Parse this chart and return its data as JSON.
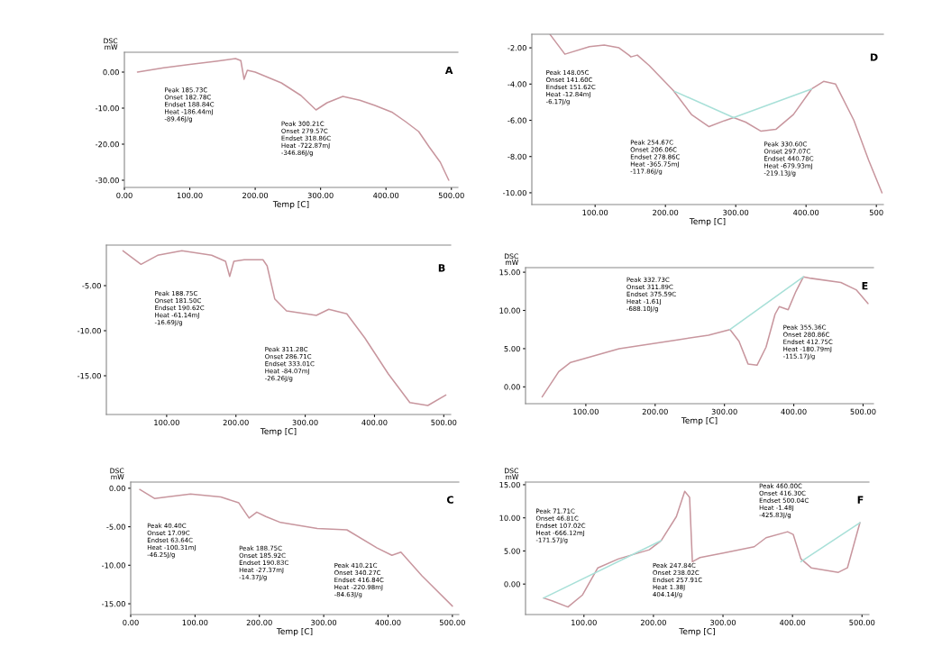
{
  "chart_data": [
    {
      "type": "line",
      "title": "A",
      "xlabel": "Temp [C]",
      "ylabel": "DSC\nmW",
      "xlim": [
        0,
        510
      ],
      "ylim": [
        -32,
        5.5
      ],
      "xticks": [
        {
          "value": 0,
          "label": "0.00"
        },
        {
          "value": 100,
          "label": "100.00"
        },
        {
          "value": 200,
          "label": "200.00"
        },
        {
          "value": 300,
          "label": "300.00"
        },
        {
          "value": 400,
          "label": "400.00"
        },
        {
          "value": 500,
          "label": "500.00"
        }
      ],
      "yticks": [
        {
          "value": 0,
          "label": "0.00"
        },
        {
          "value": -10,
          "label": "-10.00"
        },
        {
          "value": -20,
          "label": "-20.00"
        },
        {
          "value": -30,
          "label": "-30.00"
        }
      ],
      "series": [
        {
          "color": "#c8969e",
          "x": [
            20,
            60,
            100,
            140,
            170,
            178,
            183,
            188,
            200,
            240,
            270,
            293,
            310,
            334,
            360,
            383,
            410,
            430,
            450,
            466,
            483,
            496
          ],
          "values": [
            0,
            1.2,
            2.1,
            3,
            3.75,
            3.2,
            -2,
            0.5,
            0,
            -3,
            -6.5,
            -10.5,
            -8.5,
            -6.75,
            -7.8,
            -9.25,
            -11.2,
            -13.75,
            -16.5,
            -20.75,
            -25,
            -30
          ]
        }
      ],
      "annotations": [
        "Peak 185.73C\nOnset 182.78C\nEndset 188.84C\nHeat -186.44mJ\n-89.46J/g",
        "Peak 300.21C\nOnset 279.57C\nEndset 318.86C\nHeat -722.87mJ\n-346.86J/g"
      ]
    },
    {
      "type": "line",
      "title": "D",
      "xlabel": "Temp [C]",
      "xlim": [
        10,
        510
      ],
      "ylim": [
        -10.65,
        -1.25
      ],
      "xticks": [
        {
          "value": 100,
          "label": "100.00"
        },
        {
          "value": 200,
          "label": "200.00"
        },
        {
          "value": 300,
          "label": "300.00"
        },
        {
          "value": 400,
          "label": "400.00"
        },
        {
          "value": 500,
          "label": "500"
        }
      ],
      "yticks": [
        {
          "value": -2,
          "label": "-2.00"
        },
        {
          "value": -4,
          "label": "-4.00"
        },
        {
          "value": -6,
          "label": "-6.00"
        },
        {
          "value": -8,
          "label": "-8.00"
        },
        {
          "value": -10,
          "label": "-10.00"
        }
      ],
      "series": [
        {
          "color": "#c8969e",
          "x": [
            36,
            57,
            92,
            113,
            134,
            148,
            151,
            160,
            177,
            211,
            237,
            262,
            284,
            297,
            314,
            336,
            357,
            382,
            408,
            425,
            442,
            468,
            489,
            508
          ],
          "values": [
            -1.27,
            -2.35,
            -1.93,
            -1.85,
            -2.0,
            -2.4,
            -2.5,
            -2.4,
            -2.98,
            -4.35,
            -5.68,
            -6.35,
            -6.02,
            -5.85,
            -6.1,
            -6.6,
            -6.5,
            -5.68,
            -4.27,
            -3.85,
            -4.0,
            -6.0,
            -8.2,
            -10.0
          ]
        },
        {
          "color": "#a8e0d8",
          "x": [
            213,
            297,
            408
          ],
          "values": [
            -4.4,
            -5.85,
            -4.27
          ]
        }
      ],
      "annotations": [
        "Peak 148.05C\nOnset 141.60C\nEndset 151.62C\nHeat -12.84mJ\n-6.17J/g",
        "Peak 254.67C\nOnset 206.06C\nEndset 278.86C\nHeat -365.75mJ\n-117.86J/g",
        "Peak 330.60C\nOnset 297.07C\nEndset 440.78C\nHeat -679.93mJ\n-219.13J/g"
      ]
    },
    {
      "type": "line",
      "title": "B",
      "xlabel": "Temp [C]",
      "xlim": [
        13,
        510
      ],
      "ylim": [
        -19.3,
        -0.5
      ],
      "xticks": [
        {
          "value": 100,
          "label": "100.00"
        },
        {
          "value": 200,
          "label": "200.00"
        },
        {
          "value": 300,
          "label": "300.00"
        },
        {
          "value": 400,
          "label": "400.00"
        },
        {
          "value": 500,
          "label": "500.00"
        }
      ],
      "yticks": [
        {
          "value": -5,
          "label": "-5.00"
        },
        {
          "value": -10,
          "label": "-10.00"
        },
        {
          "value": -15,
          "label": "-15.00"
        }
      ],
      "series": [
        {
          "color": "#c8969e",
          "x": [
            37,
            63,
            87,
            122,
            165,
            185,
            191,
            197,
            212,
            239,
            245,
            256,
            273,
            316,
            334,
            360,
            386,
            420,
            451,
            477,
            503
          ],
          "values": [
            -1.13,
            -2.63,
            -1.63,
            -1.13,
            -1.63,
            -2.3,
            -3.97,
            -2.3,
            -2.13,
            -2.13,
            -2.8,
            -6.47,
            -7.8,
            -8.3,
            -7.63,
            -8.13,
            -10.8,
            -14.8,
            -17.97,
            -18.3,
            -17.13
          ]
        }
      ],
      "annotations": [
        "Peak 188.75C\nOnset 181.50C\nEndset 190.62C\nHeat -61.14mJ\n-16.69J/g",
        "Peak 311.28C\nOnset 286.71C\nEndset 333.01C\nHeat -84.07mJ\n-26.26J/g"
      ]
    },
    {
      "type": "line",
      "title": "E",
      "xlabel": "Temp [C]",
      "ylabel": "DSC\nmW",
      "xlim": [
        13,
        515
      ],
      "ylim": [
        -2.2,
        15.6
      ],
      "xticks": [
        {
          "value": 100,
          "label": "100.00"
        },
        {
          "value": 200,
          "label": "200.00"
        },
        {
          "value": 300,
          "label": "300.00"
        },
        {
          "value": 400,
          "label": "400.00"
        },
        {
          "value": 500,
          "label": "500.00"
        }
      ],
      "yticks": [
        {
          "value": 0,
          "label": "0.00"
        },
        {
          "value": 5,
          "label": "5.00"
        },
        {
          "value": 10,
          "label": "10.00"
        },
        {
          "value": 15,
          "label": "15.00"
        }
      ],
      "series": [
        {
          "color": "#c8969e",
          "x": [
            37,
            61,
            78,
            148,
            234,
            277,
            308,
            321,
            334,
            347,
            360,
            373,
            379,
            392,
            403,
            414,
            425,
            468,
            490,
            507
          ],
          "values": [
            -1.3,
            2.0,
            3.2,
            5.0,
            6.17,
            6.77,
            7.5,
            5.97,
            3.0,
            2.83,
            5.2,
            9.5,
            10.5,
            10.1,
            12.47,
            14.4,
            14.2,
            13.65,
            12.7,
            10.9
          ]
        },
        {
          "color": "#a8e0d8",
          "x": [
            308,
            414
          ],
          "values": [
            7.5,
            14.4
          ]
        }
      ],
      "annotations": [
        "Peak 332.73C\nOnset 311.89C\nEndset 375.59C\nHeat -1.61J\n-688.10J/g",
        "Peak 355.36C\nOnset 280.86C\nEndset 412.75C\nHeat -180.79mJ\n-115.17J/g"
      ]
    },
    {
      "type": "line",
      "title": "C",
      "xlabel": "Temp [C]",
      "ylabel": "DSC\nmW",
      "xlim": [
        0,
        510
      ],
      "ylim": [
        -16.4,
        0.8
      ],
      "xticks": [
        {
          "value": 0,
          "label": "0.00"
        },
        {
          "value": 100,
          "label": "100.00"
        },
        {
          "value": 200,
          "label": "200.00"
        },
        {
          "value": 300,
          "label": "300.00"
        },
        {
          "value": 400,
          "label": "400.00"
        },
        {
          "value": 500,
          "label": "500.00"
        }
      ],
      "yticks": [
        {
          "value": 0,
          "label": "0.00"
        },
        {
          "value": -5,
          "label": "-5.00"
        },
        {
          "value": -10,
          "label": "-10.00"
        },
        {
          "value": -15,
          "label": "-15.00"
        }
      ],
      "series": [
        {
          "color": "#c8969e",
          "x": [
            14,
            37,
            56,
            93,
            140,
            168,
            184,
            196,
            210,
            233,
            290,
            336,
            383,
            406,
            420,
            453,
            500
          ],
          "values": [
            -0.16,
            -1.33,
            -1.13,
            -0.74,
            -1.13,
            -1.9,
            -3.87,
            -3.1,
            -3.67,
            -4.45,
            -5.23,
            -5.4,
            -7.75,
            -8.7,
            -8.3,
            -11.4,
            -15.3
          ]
        }
      ],
      "annotations": [
        "Peak 40.40C\nOnset 17.09C\nEndset 63.64C\nHeat -100.31mJ\n-46.25J/g",
        "Peak 188.75C\nOnset 185.92C\nEndset 190.83C\nHeat -27.37mJ\n-14.37J/g",
        "Peak 410.21C\nOnset 340.27C\nEndset 416.84C\nHeat -220.98mJ\n-84.63J/g"
      ]
    },
    {
      "type": "line",
      "title": "F",
      "xlabel": "Temp [C]",
      "ylabel": "DSC\nmW",
      "xlim": [
        16,
        510
      ],
      "ylim": [
        -4.6,
        15.4
      ],
      "xticks": [
        {
          "value": 100,
          "label": "100.00"
        },
        {
          "value": 200,
          "label": "200.00"
        },
        {
          "value": 300,
          "label": "300.00"
        },
        {
          "value": 400,
          "label": "400.00"
        },
        {
          "value": 500,
          "label": "500.00"
        }
      ],
      "yticks": [
        {
          "value": 0,
          "label": "0.00"
        },
        {
          "value": 5,
          "label": "5.00"
        },
        {
          "value": 10,
          "label": "10.00"
        },
        {
          "value": 15,
          "label": "15.00"
        }
      ],
      "series": [
        {
          "color": "#c8969e",
          "x": [
            42,
            55,
            77,
            98,
            120,
            150,
            194,
            211,
            233,
            245,
            252,
            256,
            267,
            302,
            345,
            362,
            393,
            401,
            412,
            427,
            466,
            479,
            497
          ],
          "values": [
            -2.1,
            -2.55,
            -3.46,
            -1.64,
            2.45,
            3.82,
            5.18,
            6.55,
            10.2,
            14.0,
            13.1,
            3.37,
            4.0,
            4.73,
            5.64,
            7.0,
            7.9,
            7.5,
            3.82,
            2.45,
            1.77,
            2.45,
            9.27
          ]
        },
        {
          "color": "#a8e0d8",
          "x": [
            42,
            211
          ],
          "values": [
            -2.1,
            6.55
          ]
        },
        {
          "color": "#a8e0d8",
          "x": [
            412,
            497
          ],
          "values": [
            3.37,
            9.27
          ]
        }
      ],
      "annotations": [
        "Peak 71.71C\nOnset 46.81C\nEndset 107.02C\nHeat -666.12mJ\n-171.57J/g",
        "Peak 247.84C\nOnset 238.02C\nEndset 257.91C\nHeat 1.38J\n404.14J/g",
        "Peak 460.00C\nOnset 416.30C\nEndset 500.04C\nHeat -1.48J\n-425.83J/g"
      ]
    }
  ]
}
